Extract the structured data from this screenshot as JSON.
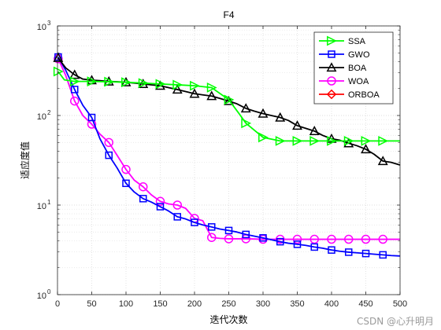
{
  "chart_data": {
    "type": "line",
    "title": "F4",
    "xlabel": "迭代次数",
    "ylabel": "适应度值",
    "xlim": [
      0,
      500
    ],
    "ylim": [
      1,
      1000
    ],
    "yscale": "log",
    "grid": true,
    "legend_position": "top-right",
    "x_ticks": [
      0,
      50,
      100,
      150,
      200,
      250,
      300,
      350,
      400,
      450,
      500
    ],
    "x_tick_labels": [
      "0",
      "50",
      "100",
      "150",
      "200",
      "250",
      "300",
      "350",
      "400",
      "450",
      "500"
    ],
    "y_ticks": [
      1,
      10,
      100,
      1000
    ],
    "y_tick_labels": [
      "10",
      "10",
      "10",
      "10"
    ],
    "y_tick_exponents": [
      "0",
      "1",
      "2",
      "3"
    ],
    "series": [
      {
        "name": "SSA",
        "color": "#00ff00",
        "marker": "triangle-right",
        "x": [
          1,
          10,
          25,
          50,
          75,
          100,
          125,
          150,
          175,
          200,
          225,
          250,
          265,
          275,
          300,
          325,
          350,
          375,
          400,
          425,
          450,
          475,
          500
        ],
        "values": [
          310,
          250,
          240,
          240,
          238,
          235,
          230,
          225,
          220,
          215,
          205,
          150,
          105,
          82,
          57,
          52,
          52,
          52,
          52,
          52,
          52,
          52,
          52
        ]
      },
      {
        "name": "GWO",
        "color": "#0000ff",
        "marker": "square",
        "x": [
          1,
          12,
          25,
          37,
          50,
          62,
          75,
          87,
          100,
          112,
          125,
          137,
          150,
          162,
          175,
          187,
          200,
          212,
          225,
          237,
          250,
          262,
          275,
          287,
          300,
          312,
          325,
          337,
          350,
          362,
          375,
          387,
          400,
          412,
          425,
          437,
          450,
          462,
          475,
          487,
          500
        ],
        "values": [
          450,
          320,
          195,
          130,
          95,
          55,
          36,
          26,
          17.5,
          14,
          11.8,
          10.8,
          9.6,
          8.6,
          7.4,
          7.0,
          6.4,
          6.0,
          5.7,
          5.4,
          5.2,
          5.0,
          4.7,
          4.5,
          4.3,
          4.1,
          3.9,
          3.75,
          3.65,
          3.55,
          3.4,
          3.3,
          3.15,
          3.05,
          2.98,
          2.93,
          2.88,
          2.83,
          2.78,
          2.73,
          2.7
        ]
      },
      {
        "name": "BOA",
        "color": "#000000",
        "marker": "triangle-up",
        "x": [
          1,
          12,
          25,
          37,
          50,
          62,
          75,
          87,
          100,
          112,
          125,
          137,
          150,
          162,
          175,
          187,
          200,
          212,
          225,
          237,
          250,
          262,
          275,
          287,
          300,
          312,
          325,
          337,
          350,
          362,
          375,
          387,
          400,
          412,
          425,
          437,
          450,
          462,
          475,
          487,
          500
        ],
        "values": [
          440,
          340,
          285,
          255,
          248,
          245,
          240,
          238,
          235,
          230,
          225,
          220,
          215,
          205,
          195,
          185,
          175,
          170,
          165,
          155,
          145,
          135,
          120,
          112,
          105,
          100,
          95,
          88,
          77,
          72,
          67,
          60,
          55,
          53,
          49,
          46,
          42,
          37,
          31,
          30,
          28
        ]
      },
      {
        "name": "WOA",
        "color": "#ff00ff",
        "marker": "circle",
        "x": [
          1,
          12,
          25,
          37,
          50,
          62,
          75,
          87,
          100,
          112,
          125,
          137,
          150,
          162,
          175,
          187,
          200,
          212,
          225,
          237,
          250,
          262,
          275,
          287,
          300,
          312,
          325,
          337,
          350,
          362,
          375,
          387,
          400,
          412,
          425,
          437,
          450,
          462,
          475,
          487,
          500
        ],
        "values": [
          430,
          280,
          145,
          100,
          80,
          62,
          50,
          36,
          25,
          19,
          16,
          13,
          11,
          10.3,
          10,
          9.2,
          7.1,
          6.7,
          4.35,
          4.25,
          4.2,
          4.2,
          4.2,
          4.18,
          4.15,
          4.15,
          4.15,
          4.15,
          4.15,
          4.15,
          4.15,
          4.15,
          4.15,
          4.15,
          4.15,
          4.15,
          4.15,
          4.15,
          4.15,
          4.15,
          4.15
        ]
      },
      {
        "name": "ORBOA",
        "color": "#ff0000",
        "marker": "diamond",
        "x": [],
        "values": []
      }
    ]
  },
  "watermark": "CSDN @心升明月"
}
